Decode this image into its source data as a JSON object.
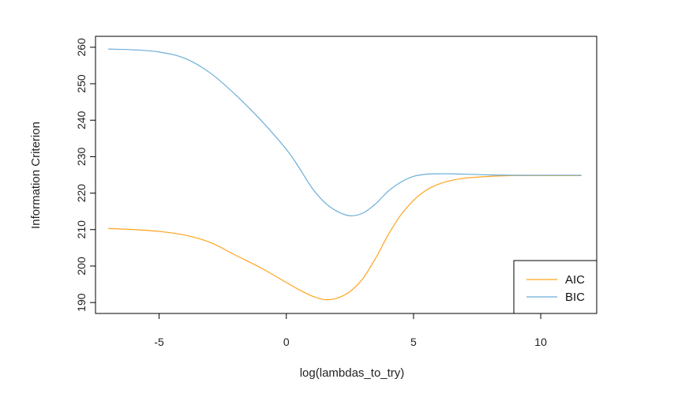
{
  "chart_data": {
    "type": "line",
    "title": "",
    "xlabel": "log(lambdas_to_try)",
    "ylabel": "Information Criterion",
    "xlim": [
      -7.5,
      12.2
    ],
    "ylim": [
      187,
      263
    ],
    "xticks": [
      -5,
      0,
      5,
      10
    ],
    "yticks": [
      190,
      200,
      210,
      220,
      230,
      240,
      250,
      260
    ],
    "grid": false,
    "legend_position": "bottom-right",
    "series": [
      {
        "name": "AIC",
        "color": "#FFA31F",
        "x": [
          -7,
          -6,
          -5,
          -4,
          -3,
          -2,
          -1,
          0,
          0.5,
          1,
          1.5,
          2,
          2.5,
          3,
          3.5,
          4,
          4.5,
          5,
          5.5,
          6,
          6.5,
          7,
          8,
          9,
          10,
          11.6
        ],
        "y": [
          210.3,
          210.0,
          209.5,
          208.5,
          206.5,
          203.0,
          199.5,
          195.5,
          193.5,
          191.8,
          190.8,
          191.2,
          193.0,
          196.5,
          202.0,
          208.5,
          214.0,
          218.0,
          220.8,
          222.5,
          223.5,
          224.1,
          224.6,
          224.8,
          224.8,
          224.8
        ]
      },
      {
        "name": "BIC",
        "color": "#6BAED6",
        "x": [
          -7,
          -6,
          -5,
          -4,
          -3,
          -2,
          -1,
          0,
          0.5,
          1,
          1.5,
          2,
          2.5,
          3,
          3.5,
          4,
          4.5,
          5,
          5.5,
          6,
          6.5,
          7,
          8,
          9,
          10,
          11.6
        ],
        "y": [
          259.5,
          259.3,
          258.7,
          257.0,
          253.0,
          247.0,
          240.0,
          232.0,
          227.0,
          221.5,
          217.5,
          215.0,
          213.8,
          214.5,
          217.0,
          220.5,
          223.0,
          224.6,
          225.2,
          225.3,
          225.3,
          225.2,
          225.0,
          224.9,
          224.9,
          224.9
        ]
      }
    ]
  }
}
